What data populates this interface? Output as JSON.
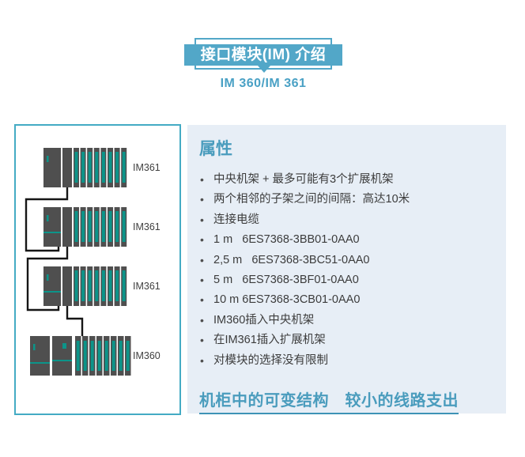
{
  "header": {
    "title": "接口模块(IM) 介绍",
    "subtitle": "IM 360/IM 361"
  },
  "diagram": {
    "racks": [
      {
        "label": "IM361",
        "type": "expansion",
        "io_modules": 8
      },
      {
        "label": "IM361",
        "type": "expansion",
        "io_modules": 8
      },
      {
        "label": "IM361",
        "type": "expansion",
        "io_modules": 8
      },
      {
        "label": "IM360",
        "type": "central",
        "io_modules": 8
      }
    ]
  },
  "properties": {
    "title": "属性",
    "bullets": [
      "中央机架 + 最多可能有3个扩展机架",
      "两个相邻的子架之间的间隔：高达10米",
      "连接电缆",
      "1 m   6ES7368-3BB01-0AA0",
      "2,5 m   6ES7368-3BC51-0AA0",
      "5 m   6ES7368-3BF01-0AA0",
      "10 m 6ES7368-3CB01-0AA0",
      "IM360插入中央机架",
      "在IM361插入扩展机架",
      "对模块的选择没有限制"
    ],
    "footer": "机柜中的可变结构　较小的线路支出"
  },
  "colors": {
    "banner_blue": "#52a7c8",
    "panel_border": "#44abc4",
    "panel_bg": "#e7eef6",
    "heading_blue": "#4a9cbd",
    "module_gray": "#4f4f4f",
    "module_teal": "#0c9489",
    "cable_black": "#161616",
    "text_dark": "#3c3c3c",
    "label_gray": "#3f3f3f"
  }
}
